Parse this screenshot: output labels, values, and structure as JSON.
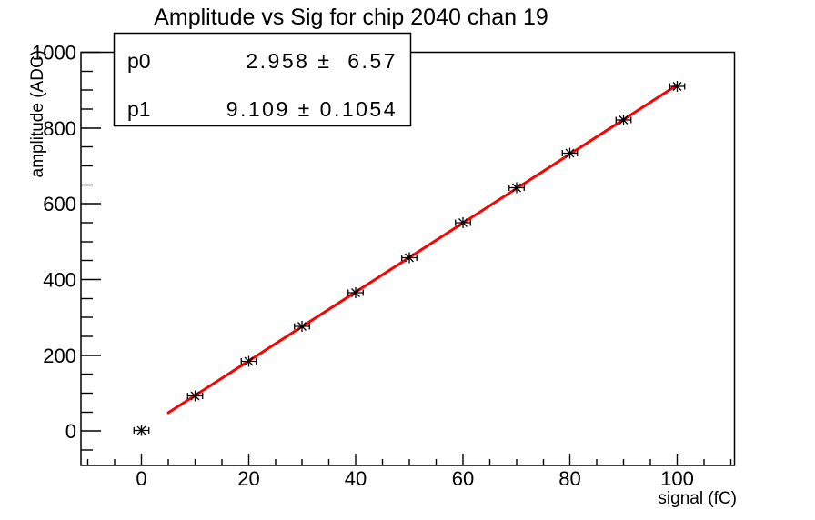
{
  "canvas": {
    "background": "#ffffff",
    "frame_color": "#000000"
  },
  "stats_box": {
    "rows": [
      {
        "label": "p0",
        "value": "2.958 ±  6.57"
      },
      {
        "label": "p1",
        "value": "9.109 ± 0.1054"
      }
    ]
  },
  "chart_data": {
    "type": "scatter",
    "title": "Amplitude vs Sig for chip 2040 chan 19",
    "xlabel": "signal (fC)",
    "ylabel": "amplitude (ADC)",
    "x": [
      0,
      10,
      20,
      30,
      40,
      50,
      60,
      70,
      80,
      90,
      100
    ],
    "y": [
      1,
      93,
      184,
      276,
      365,
      458,
      550,
      642,
      733,
      821,
      910
    ],
    "x_error": 1.4,
    "marker": "asterisk",
    "marker_color": "#000000",
    "axis_color": "#000000",
    "fit_line": {
      "p0": 2.958,
      "p0_err": 6.57,
      "p1": 9.109,
      "p1_err": 0.1054,
      "x_range": [
        5,
        100
      ],
      "color": "#ff0000",
      "width": 3
    },
    "x_ticks": [
      0,
      20,
      40,
      60,
      80,
      100
    ],
    "y_ticks": [
      0,
      200,
      400,
      600,
      800,
      1000
    ],
    "x_minor_step": 5,
    "y_minor_step": 50,
    "xlim": [
      -11.3,
      110.7
    ],
    "ylim": [
      -91,
      1000
    ],
    "grid": false,
    "legend_position": "none"
  }
}
